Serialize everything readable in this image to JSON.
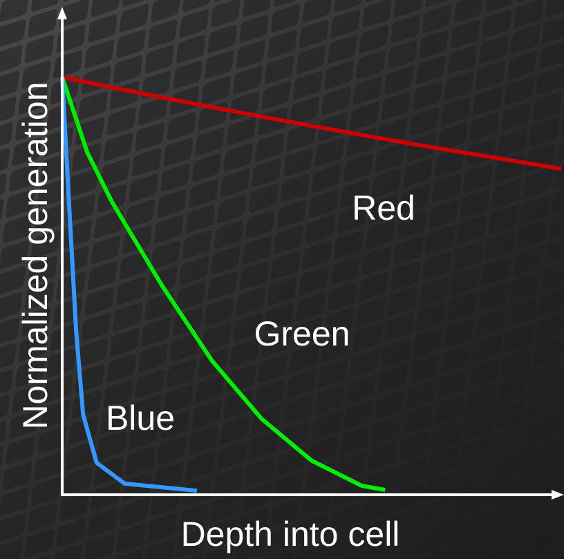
{
  "chart_data": {
    "type": "line",
    "x_label": "Depth into cell",
    "y_label": "Normalized generation",
    "xlim": [
      0,
      1
    ],
    "ylim": [
      0,
      1.16
    ],
    "series": [
      {
        "name": "Red",
        "color": "#cc0000",
        "x": [
          0,
          0.1,
          0.2,
          0.3,
          0.4,
          0.5,
          0.6,
          0.7,
          0.8,
          0.9,
          1
        ],
        "values": [
          1,
          0.975,
          0.951,
          0.928,
          0.905,
          0.883,
          0.861,
          0.84,
          0.82,
          0.8,
          0.78
        ]
      },
      {
        "name": "Green",
        "color": "#00ee00",
        "x": [
          0,
          0.05,
          0.1,
          0.15,
          0.2,
          0.3,
          0.4,
          0.5,
          0.6,
          0.647
        ],
        "values": [
          1,
          0.82,
          0.7,
          0.6,
          0.5,
          0.32,
          0.18,
          0.08,
          0.02,
          0.01
        ]
      },
      {
        "name": "Blue",
        "color": "#3399ff",
        "x": [
          0,
          0.014,
          0.028,
          0.042,
          0.069,
          0.125,
          0.27
        ],
        "values": [
          1,
          0.69,
          0.39,
          0.19,
          0.075,
          0.025,
          0.008
        ]
      }
    ]
  }
}
